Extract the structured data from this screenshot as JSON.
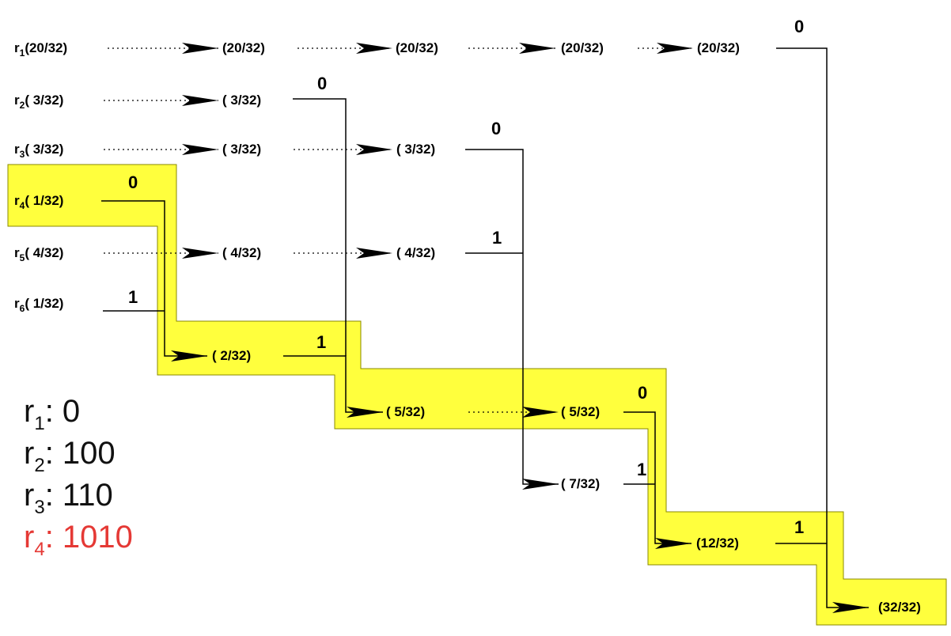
{
  "colors": {
    "highlight": "#ffff3d",
    "highlight_stroke": "#8a8a00",
    "ink": "#000000",
    "accent": "#e53935"
  },
  "leaves": [
    {
      "sym": "r",
      "idx": "1",
      "prob": "(20/32)"
    },
    {
      "sym": "r",
      "idx": "2",
      "prob": "( 3/32)"
    },
    {
      "sym": "r",
      "idx": "3",
      "prob": "( 3/32)"
    },
    {
      "sym": "r",
      "idx": "4",
      "prob": "( 1/32)"
    },
    {
      "sym": "r",
      "idx": "5",
      "prob": "( 4/32)"
    },
    {
      "sym": "r",
      "idx": "6",
      "prob": "( 1/32)"
    }
  ],
  "nodes": {
    "r1_col1": "(20/32)",
    "r1_col2": "(20/32)",
    "r1_col3": "(20/32)",
    "r1_col4": "(20/32)",
    "r2_col1": "( 3/32)",
    "r3_col1": "( 3/32)",
    "r3_col2": "( 3/32)",
    "r5_col1": "( 4/32)",
    "r5_col2": "( 4/32)",
    "m_2_32": "( 2/32)",
    "m_5_32_a": "( 5/32)",
    "m_5_32_b": "( 5/32)",
    "m_7_32": "( 7/32)",
    "m_12_32": "(12/32)",
    "root": "(32/32)"
  },
  "bits": {
    "r1": "0",
    "r2": "0",
    "r3": "0",
    "r4": "0",
    "r5": "1",
    "r6": "1",
    "m2": "1",
    "m5": "0",
    "m7": "1",
    "m12": "1"
  },
  "codes": [
    {
      "sym": "r",
      "idx": "1",
      "code": ": 0",
      "highlight": false
    },
    {
      "sym": "r",
      "idx": "2",
      "code": ": 100",
      "highlight": false
    },
    {
      "sym": "r",
      "idx": "3",
      "code": ": 110",
      "highlight": false
    },
    {
      "sym": "r",
      "idx": "4",
      "code": ": 1010",
      "highlight": true
    }
  ]
}
